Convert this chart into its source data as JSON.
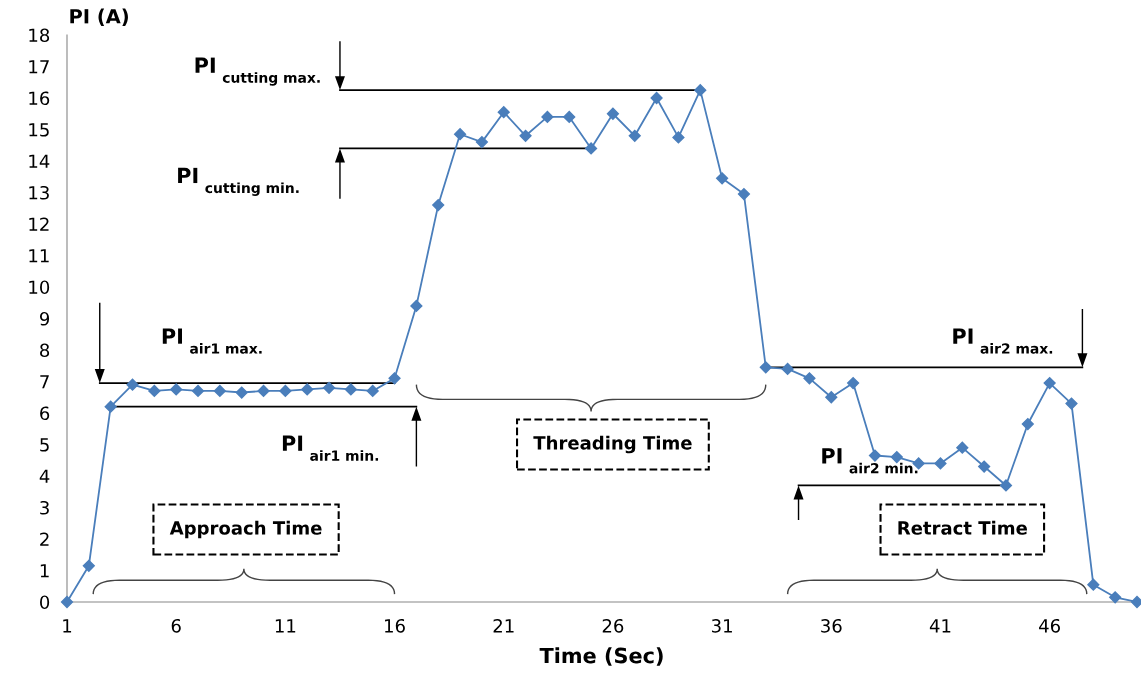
{
  "chart_data": {
    "type": "line",
    "xlabel": "Time (Sec)",
    "ylabel": "PI (A)",
    "x": [
      1,
      2,
      3,
      4,
      5,
      6,
      7,
      8,
      9,
      10,
      11,
      12,
      13,
      14,
      15,
      16,
      17,
      18,
      19,
      20,
      21,
      22,
      23,
      24,
      25,
      26,
      27,
      28,
      29,
      30,
      31,
      32,
      33,
      34,
      35,
      36,
      37,
      38,
      39,
      40,
      41,
      42,
      43,
      44,
      45,
      46,
      47,
      48,
      49,
      50
    ],
    "series": [
      {
        "color": "#4a7ebb",
        "values": [
          0,
          1.15,
          6.2,
          6.9,
          6.7,
          6.75,
          6.7,
          6.7,
          6.65,
          6.7,
          6.7,
          6.75,
          6.8,
          6.75,
          6.7,
          7.1,
          9.4,
          12.6,
          14.85,
          14.6,
          15.55,
          14.8,
          15.4,
          15.4,
          14.4,
          15.5,
          14.8,
          16.0,
          14.75,
          16.25,
          13.45,
          12.95,
          7.45,
          7.4,
          7.1,
          6.5,
          6.95,
          4.65,
          4.6,
          4.4,
          4.4,
          4.9,
          4.3,
          3.7,
          5.65,
          6.95,
          6.3,
          0.55,
          0.15,
          0.0
        ]
      }
    ],
    "xlim": [
      1,
      50
    ],
    "ylim": [
      0,
      18
    ],
    "xticks": [
      1,
      6,
      11,
      16,
      21,
      26,
      31,
      36,
      41,
      46
    ],
    "yticks": [
      0,
      1,
      2,
      3,
      4,
      5,
      6,
      7,
      8,
      9,
      10,
      11,
      12,
      13,
      14,
      15,
      16,
      17,
      18
    ],
    "marker": "diamond",
    "line_style": "solid",
    "grid": false,
    "ref_lines": [
      {
        "axis": "y",
        "value": 16.25,
        "label": "PI $_{cutting max.}$",
        "color": "#000000"
      },
      {
        "axis": "y",
        "value": 14.4,
        "label": "PI $_{cutting min.}$",
        "color": "#000000"
      },
      {
        "axis": "y",
        "value": 6.95,
        "label": "PI $_{air1 max.}$",
        "color": "#000000"
      },
      {
        "axis": "y",
        "value": 6.2,
        "label": "PI $_{air1 min.}$",
        "color": "#000000"
      },
      {
        "axis": "y",
        "value": 7.45,
        "label": "PI $_{air2 max.}$",
        "color": "#000000"
      },
      {
        "axis": "y",
        "value": 3.7,
        "label": "PI $_{air2 min.}$",
        "color": "#000000"
      }
    ],
    "annotations": [
      "Approach Time",
      "Threading Time",
      "Retract Time"
    ]
  }
}
